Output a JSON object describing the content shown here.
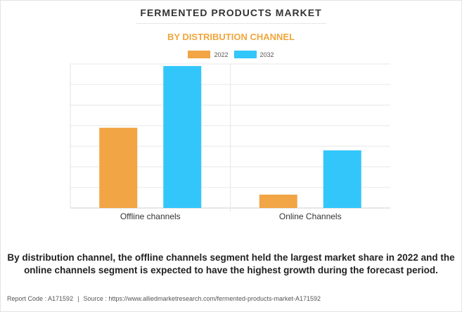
{
  "header": {
    "title": "FERMENTED PRODUCTS MARKET",
    "subtitle": "BY DISTRIBUTION CHANNEL"
  },
  "colors": {
    "series_2022": "#f1a545",
    "series_2032": "#33c6fb",
    "subtitle": "#f0a63c",
    "grid": "#e8e8e8"
  },
  "chart_data": {
    "type": "bar",
    "categories": [
      "Offline channels",
      "Online Channels"
    ],
    "series": [
      {
        "name": "2022",
        "values": [
          3.9,
          0.65
        ]
      },
      {
        "name": "2032",
        "values": [
          6.9,
          2.8
        ]
      }
    ],
    "ylim": [
      0,
      7
    ],
    "y_tick_step": 1,
    "y_tick_labels_visible": false,
    "grid": true,
    "legend": "top-center"
  },
  "caption": "By distribution channel, the offline channels segment held the largest market share in 2022 and the online channels segment is expected to have the highest growth during the forecast period.",
  "footer": {
    "report_code": "Report Code : A171592",
    "separator": "|",
    "source": "Source : https://www.alliedmarketresearch.com/fermented-products-market-A171592"
  }
}
